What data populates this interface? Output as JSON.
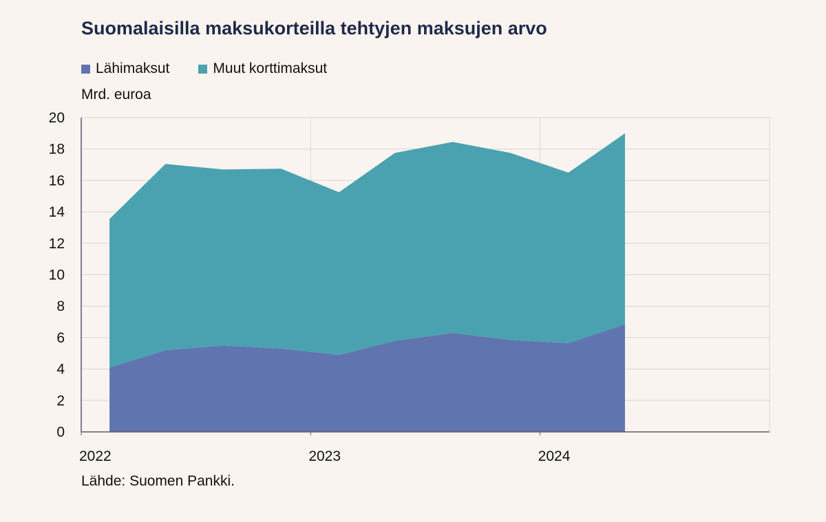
{
  "colors": {
    "background": "#f9f4ef",
    "grid": "#d9d4d9",
    "axis": "#5a5a6e",
    "title": "#1f2a4a"
  },
  "chart_data": {
    "type": "area",
    "title": "Suomalaisilla maksukorteilla tehtyjen maksujen arvo",
    "ylabel": "Mrd. euroa",
    "xlabel": "",
    "source": "Lähde: Suomen Pankki.",
    "stacked": true,
    "legend_placement": "top-left",
    "grid": true,
    "ylim": [
      0,
      20
    ],
    "yticks": [
      0,
      2,
      4,
      6,
      8,
      10,
      12,
      14,
      16,
      18,
      20
    ],
    "xlim": [
      "2022-01-01",
      "2024-12-31"
    ],
    "xticks": [
      {
        "value": "2022-01-01",
        "label": "2022"
      },
      {
        "value": "2023-01-01",
        "label": "2023"
      },
      {
        "value": "2024-01-01",
        "label": "2024"
      }
    ],
    "x": [
      "2022-Q1",
      "2022-Q2",
      "2022-Q3",
      "2022-Q4",
      "2023-Q1",
      "2023-Q2",
      "2023-Q3",
      "2023-Q4",
      "2024-Q1",
      "2024-Q2"
    ],
    "x_dates": [
      "2022-02-15",
      "2022-05-15",
      "2022-08-15",
      "2022-11-15",
      "2023-02-15",
      "2023-05-15",
      "2023-08-15",
      "2023-11-15",
      "2024-02-15",
      "2024-05-15"
    ],
    "series": [
      {
        "name": "Lähimaksut",
        "color": "#6075b0",
        "values": [
          4.1,
          5.2,
          5.5,
          5.3,
          4.9,
          5.8,
          6.3,
          5.85,
          5.65,
          6.85
        ]
      },
      {
        "name": "Muut korttimaksut",
        "color": "#4aa2b0",
        "values": [
          9.45,
          11.85,
          11.2,
          11.45,
          10.35,
          11.95,
          12.15,
          11.9,
          10.85,
          12.15
        ]
      }
    ]
  }
}
